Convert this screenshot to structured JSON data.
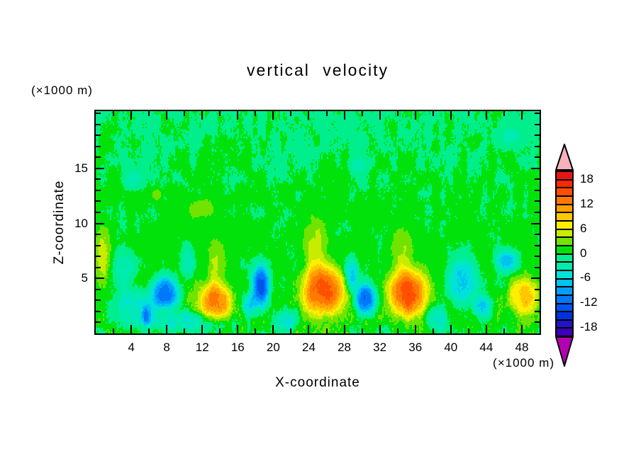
{
  "figure_background": "#FFFFFF",
  "chart_data": {
    "type": "filled_contour",
    "title": "vertical velocity",
    "xlabel": "X-coordinate",
    "ylabel": "Z-coordinate",
    "x_units_label": "(×1000 m)",
    "z_units_label": "(×1000 m)",
    "x_range": [
      0,
      50
    ],
    "z_range": [
      0,
      20.2
    ],
    "x_major_ticks": [
      4,
      8,
      12,
      16,
      20,
      24,
      28,
      32,
      36,
      40,
      44,
      48
    ],
    "x_minor_step": 2,
    "z_major_ticks": [
      5,
      10,
      15
    ],
    "z_minor_step": 1,
    "grid": false,
    "colorbar": {
      "position": "right",
      "level_min": -20,
      "level_max": 20,
      "level_step": 2,
      "labeled_levels": [
        18,
        12,
        6,
        0,
        -6,
        -12,
        -18
      ],
      "colors_min_to_max": [
        "#3C00B4",
        "#2410C8",
        "#0032DC",
        "#0055F0",
        "#0078FA",
        "#009EFF",
        "#00C3F0",
        "#00E1DC",
        "#00EBAE",
        "#00EE8C",
        "#00E20A",
        "#70E400",
        "#C8EC00",
        "#FAF000",
        "#FFC800",
        "#FFA000",
        "#FF7800",
        "#FF5000",
        "#FF2800",
        "#E61414"
      ],
      "over_arrow_color": "#F8B2BC",
      "under_arrow_color": "#B400B4"
    },
    "field": {
      "profile_power": 1.5,
      "background": {
        "base": 0.9,
        "z_slope": -0.055
      },
      "noise": {
        "seed": 7,
        "base_amp": 0.85,
        "bottom_boost": 1.9,
        "bottom_center_z": 0.5,
        "bottom_width_z": 4.5,
        "octaves": [
          {
            "fx": 0.2,
            "fz": 0.1,
            "w": 0.55
          },
          {
            "fx": 0.55,
            "fz": 0.28,
            "w": 0.3
          },
          {
            "fx": 1.35,
            "fz": 0.7,
            "w": 0.25
          },
          {
            "fx": 2.6,
            "fz": 1.1,
            "w": 0.22
          }
        ]
      },
      "features": [
        {
          "kind": "updraft",
          "x": 13.4,
          "z": 2.9,
          "sx": 1.9,
          "sz": 1.7,
          "peak": 12
        },
        {
          "kind": "updraft",
          "x": 13.6,
          "z": 6.5,
          "sx": 1.1,
          "sz": 2.2,
          "peak": 3.5
        },
        {
          "kind": "updraft",
          "x": 25.6,
          "z": 3.9,
          "sx": 2.4,
          "sz": 2.3,
          "peak": 14
        },
        {
          "kind": "updraft",
          "x": 24.8,
          "z": 8.0,
          "sx": 1.4,
          "sz": 2.6,
          "peak": 4
        },
        {
          "kind": "updraft",
          "x": 35.2,
          "z": 3.7,
          "sx": 2.2,
          "sz": 2.2,
          "peak": 14
        },
        {
          "kind": "updraft",
          "x": 34.6,
          "z": 7.6,
          "sx": 1.3,
          "sz": 2.2,
          "peak": 3.5
        },
        {
          "kind": "updraft",
          "x": 48.3,
          "z": 3.4,
          "sx": 1.7,
          "sz": 1.7,
          "peak": 8.5
        },
        {
          "kind": "updraft",
          "x": 0.8,
          "z": 7.2,
          "sx": 0.9,
          "sz": 2.6,
          "peak": 4.5
        },
        {
          "kind": "updraft",
          "x": 12.0,
          "z": 11.3,
          "sx": 1.6,
          "sz": 1.0,
          "peak": 3.2
        },
        {
          "kind": "updraft",
          "x": 6.9,
          "z": 12.6,
          "sx": 0.6,
          "sz": 0.5,
          "peak": 2.8
        },
        {
          "kind": "downdraft",
          "x": 7.9,
          "z": 3.7,
          "sx": 1.5,
          "sz": 1.5,
          "peak": -11
        },
        {
          "kind": "downdraft",
          "x": 4.5,
          "z": 2.4,
          "sx": 2.6,
          "sz": 1.6,
          "peak": -5
        },
        {
          "kind": "downdraft",
          "x": 9.5,
          "z": 1.1,
          "sx": 5.5,
          "sz": 0.9,
          "peak": -4.5
        },
        {
          "kind": "downdraft",
          "x": 18.6,
          "z": 4.3,
          "sx": 1.0,
          "sz": 2.0,
          "peak": -14
        },
        {
          "kind": "downdraft",
          "x": 17.3,
          "z": 2.6,
          "sx": 0.7,
          "sz": 1.0,
          "peak": -7
        },
        {
          "kind": "downdraft",
          "x": 30.4,
          "z": 3.1,
          "sx": 1.1,
          "sz": 1.4,
          "peak": -13
        },
        {
          "kind": "downdraft",
          "x": 28.8,
          "z": 5.3,
          "sx": 0.8,
          "sz": 1.5,
          "peak": -7
        },
        {
          "kind": "downdraft",
          "x": 41.3,
          "z": 4.6,
          "sx": 1.6,
          "sz": 2.2,
          "peak": -7.5
        },
        {
          "kind": "downdraft",
          "x": 43.6,
          "z": 2.4,
          "sx": 1.1,
          "sz": 1.1,
          "peak": -7
        },
        {
          "kind": "downdraft",
          "x": 46.3,
          "z": 6.6,
          "sx": 1.2,
          "sz": 1.0,
          "peak": -7.5
        },
        {
          "kind": "downdraft",
          "x": 5.7,
          "z": 1.7,
          "sx": 0.5,
          "sz": 0.9,
          "peak": -7
        },
        {
          "kind": "downdraft",
          "x": 29.6,
          "z": 15.3,
          "sx": 1.1,
          "sz": 0.8,
          "peak": -2.6
        },
        {
          "kind": "downdraft",
          "x": 46.8,
          "z": 17.8,
          "sx": 1.6,
          "sz": 1.0,
          "peak": -2.6
        },
        {
          "kind": "downdraft",
          "x": 4.3,
          "z": 14.0,
          "sx": 1.2,
          "sz": 0.9,
          "peak": -2.6
        },
        {
          "kind": "downdraft",
          "x": 21.3,
          "z": 1.0,
          "sx": 1.3,
          "sz": 1.0,
          "peak": -4
        },
        {
          "kind": "downdraft",
          "x": 38.5,
          "z": 1.3,
          "sx": 1.2,
          "sz": 1.2,
          "peak": -4.5
        },
        {
          "kind": "downdraft",
          "x": 10.4,
          "z": 6.5,
          "sx": 0.7,
          "sz": 1.5,
          "peak": -4
        },
        {
          "kind": "downdraft",
          "x": 3.2,
          "z": 6.0,
          "sx": 1.2,
          "sz": 1.8,
          "peak": -3.5
        }
      ]
    }
  }
}
